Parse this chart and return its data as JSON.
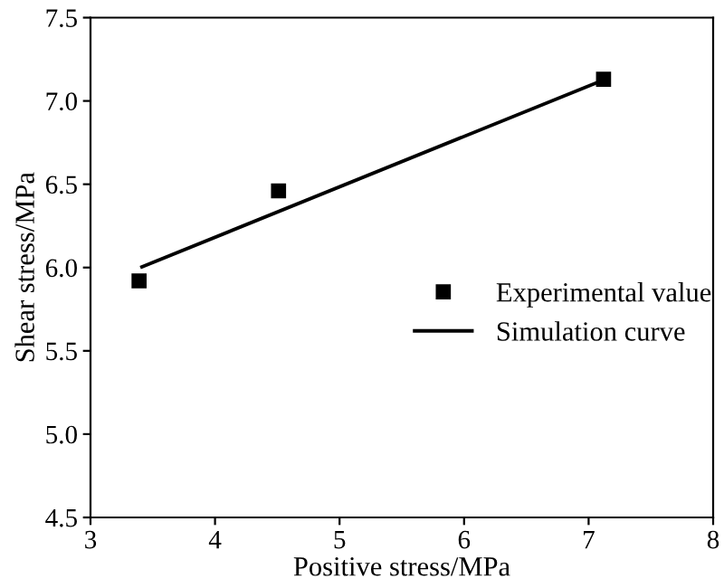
{
  "chart_data": {
    "type": "line",
    "xlabel": "Positive stress/MPa",
    "ylabel": "Shear stress/MPa",
    "xlim": [
      3,
      8
    ],
    "xticks": [
      3,
      4,
      5,
      6,
      7,
      8
    ],
    "ylim": [
      4.5,
      7.5
    ],
    "yticks": [
      {
        "value": 4.5,
        "label": "4.5"
      },
      {
        "value": 5,
        "label": "5.0"
      },
      {
        "value": 5.5,
        "label": "5.5"
      },
      {
        "value": 6,
        "label": "6.0"
      },
      {
        "value": 6.5,
        "label": "6.5"
      },
      {
        "value": 7,
        "label": "7.0"
      },
      {
        "value": 7.5,
        "label": "7.5"
      }
    ],
    "series": [
      {
        "name": "Experimental value",
        "type": "scatter",
        "color": "#000000",
        "marker": "square",
        "x": [
          3.39,
          4.51,
          7.12
        ],
        "values": [
          5.92,
          6.46,
          7.13
        ]
      },
      {
        "name": "Simulation curve",
        "color": "#000000",
        "line_style": "solid",
        "x": [
          3.4,
          7.1
        ],
        "values": [
          6.0,
          7.12
        ]
      }
    ],
    "legend": "right",
    "grid": false
  }
}
